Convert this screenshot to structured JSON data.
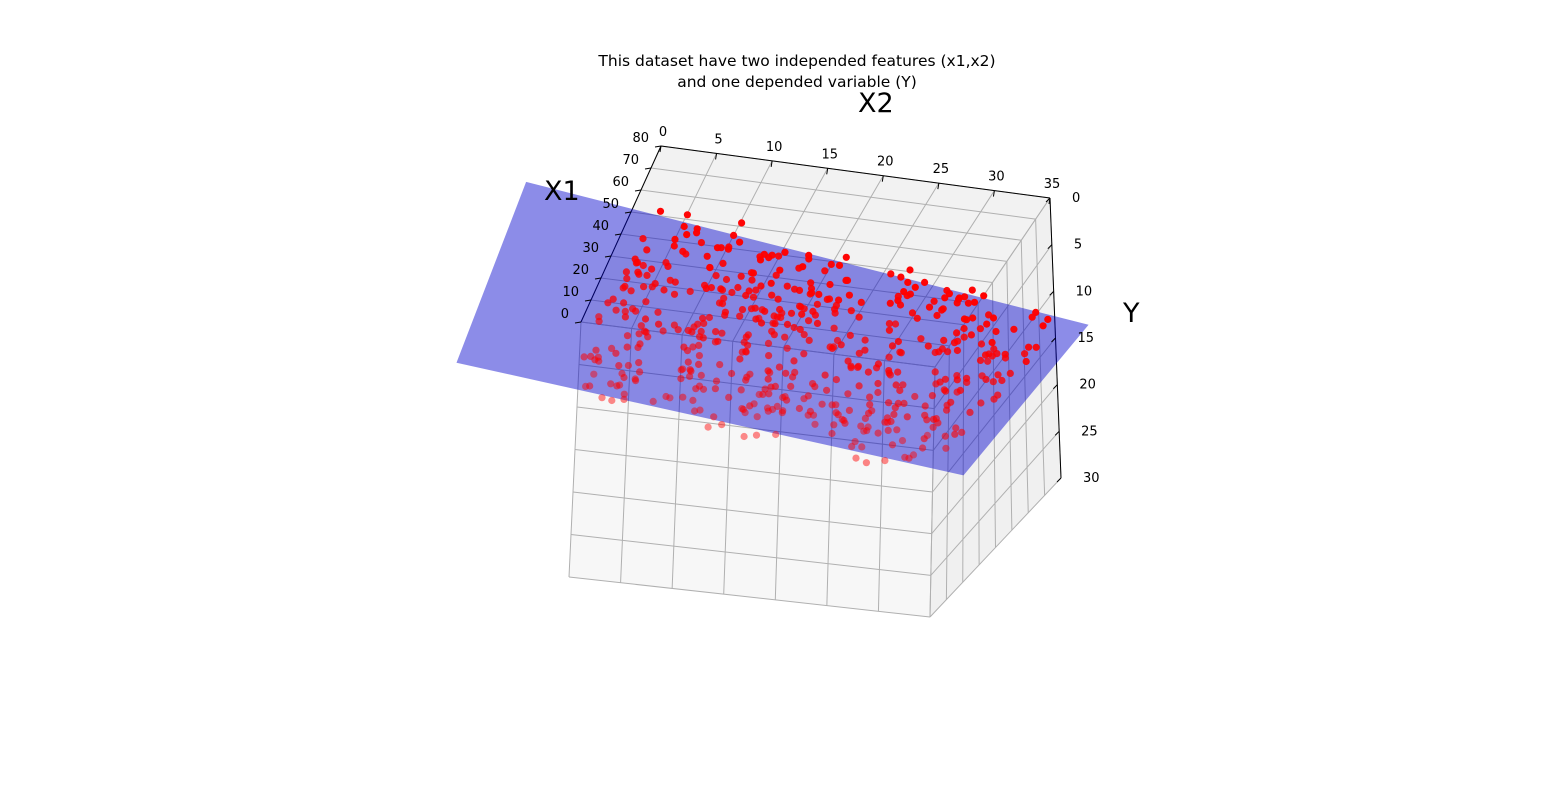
{
  "chart_data": {
    "type": "scatter",
    "projection": "3d",
    "title_lines": [
      "This dataset have two independed features (x1,x2)",
      "and one depended variable (Y)"
    ],
    "xlabel": "X1",
    "ylabel": "X2",
    "zlabel": "Y",
    "xlim": [
      0,
      80
    ],
    "ylim": [
      0,
      35
    ],
    "zlim": [
      0,
      30
    ],
    "x_ticks": [
      0,
      10,
      20,
      30,
      40,
      50,
      60,
      70,
      80
    ],
    "y_ticks": [
      0,
      5,
      10,
      15,
      20,
      25,
      30,
      35
    ],
    "z_ticks": [
      0,
      5,
      10,
      15,
      20,
      25,
      30
    ],
    "grid": true,
    "pane_color": "#f2f2f2",
    "grid_color": "#b0b0b0",
    "series": [
      {
        "kind": "scatter",
        "marker_color": "#ff0000",
        "approx_points": 500,
        "x2_range": [
          0,
          35
        ],
        "x1_range": [
          0,
          80
        ],
        "y_approx": [
          8,
          13
        ],
        "noise": 1
      },
      {
        "kind": "surface",
        "color": "#0000cc",
        "alpha": 0.5,
        "intercept": 8,
        "coef_x1": 0.005,
        "coef_x2": 0.12
      }
    ]
  }
}
